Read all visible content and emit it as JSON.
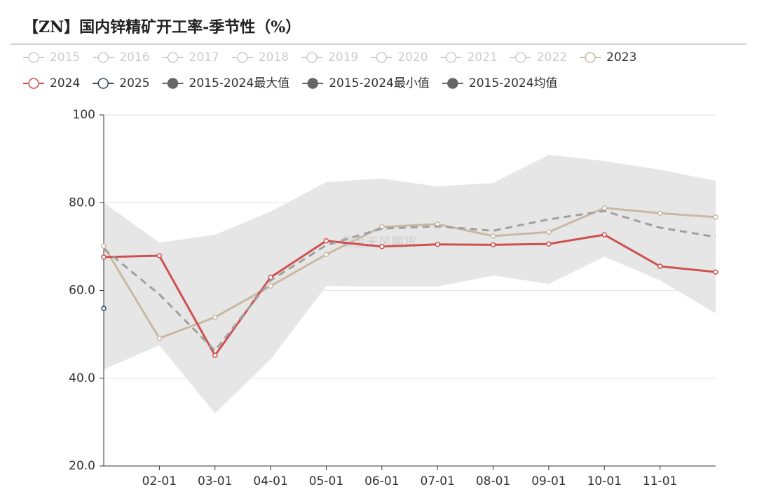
{
  "chart_data": {
    "type": "line",
    "title": "【ZN】国内锌精矿开工率-季节性（%）",
    "watermark": "紫金天风期货",
    "categories": [
      null,
      "02-01",
      "03-01",
      "04-01",
      "05-01",
      "06-01",
      "07-01",
      "08-01",
      "09-01",
      "10-01",
      "11-01",
      null
    ],
    "ylim": [
      20,
      100
    ],
    "yticks": [
      {
        "value": 20,
        "label": "20.0"
      },
      {
        "value": 40,
        "label": "40.0"
      },
      {
        "value": 60,
        "label": "60.0"
      },
      {
        "value": 80,
        "label": "80.0"
      },
      100
    ],
    "grid": true,
    "legend": "top",
    "series": [
      {
        "name": "2015",
        "color": "#cccccc",
        "values": [
          null,
          null,
          null,
          null,
          null,
          null,
          null,
          null,
          null,
          null,
          null,
          null
        ]
      },
      {
        "name": "2016",
        "color": "#cccccc",
        "values": [
          null,
          null,
          null,
          null,
          null,
          null,
          null,
          null,
          null,
          null,
          null,
          null
        ]
      },
      {
        "name": "2017",
        "color": "#cccccc",
        "values": [
          null,
          null,
          null,
          null,
          null,
          null,
          null,
          null,
          null,
          null,
          null,
          null
        ]
      },
      {
        "name": "2018",
        "color": "#cccccc",
        "values": [
          null,
          null,
          null,
          null,
          null,
          null,
          null,
          null,
          null,
          null,
          null,
          null
        ]
      },
      {
        "name": "2019",
        "color": "#cccccc",
        "values": [
          null,
          null,
          null,
          null,
          null,
          null,
          null,
          null,
          null,
          null,
          null,
          null
        ]
      },
      {
        "name": "2020",
        "color": "#cccccc",
        "values": [
          null,
          null,
          null,
          null,
          null,
          null,
          null,
          null,
          null,
          null,
          null,
          null
        ]
      },
      {
        "name": "2021",
        "color": "#cccccc",
        "values": [
          null,
          null,
          null,
          null,
          null,
          null,
          null,
          null,
          null,
          null,
          null,
          null
        ]
      },
      {
        "name": "2022",
        "color": "#cccccc",
        "values": [
          null,
          null,
          null,
          null,
          null,
          null,
          null,
          null,
          null,
          null,
          null,
          null
        ]
      },
      {
        "name": "2023",
        "color": "#c9b9a3",
        "values": [
          70.1,
          49.1,
          53.9,
          61.0,
          68.2,
          74.5,
          75.1,
          72.4,
          73.3,
          78.8,
          77.6,
          76.7
        ]
      },
      {
        "name": "2024",
        "color": "#d05050",
        "values": [
          67.6,
          67.9,
          45.2,
          63.0,
          71.3,
          70.0,
          70.5,
          70.4,
          70.6,
          72.7,
          65.5,
          64.2
        ]
      },
      {
        "name": "2025",
        "color": "#34495e",
        "values": [
          55.9,
          null,
          null,
          null,
          null,
          null,
          null,
          null,
          null,
          null,
          null,
          null
        ]
      },
      {
        "name": "2015-2024最大值",
        "color": "#666666",
        "role": "max",
        "values": [
          80.0,
          70.9,
          72.7,
          78.0,
          84.7,
          85.5,
          83.7,
          84.5,
          90.9,
          89.5,
          87.5,
          85.0
        ]
      },
      {
        "name": "2015-2024最小值",
        "color": "#666666",
        "role": "min",
        "values": [
          42.0,
          47.5,
          32.0,
          44.3,
          61.0,
          60.9,
          60.9,
          63.4,
          61.5,
          67.7,
          62.3,
          54.8
        ]
      },
      {
        "name": "2015-2024均值",
        "color": "#666666",
        "role": "mean",
        "values": [
          69.5,
          59.1,
          46.3,
          62.3,
          70.3,
          74.1,
          74.6,
          73.6,
          76.2,
          78.1,
          74.3,
          72.2
        ]
      }
    ]
  }
}
